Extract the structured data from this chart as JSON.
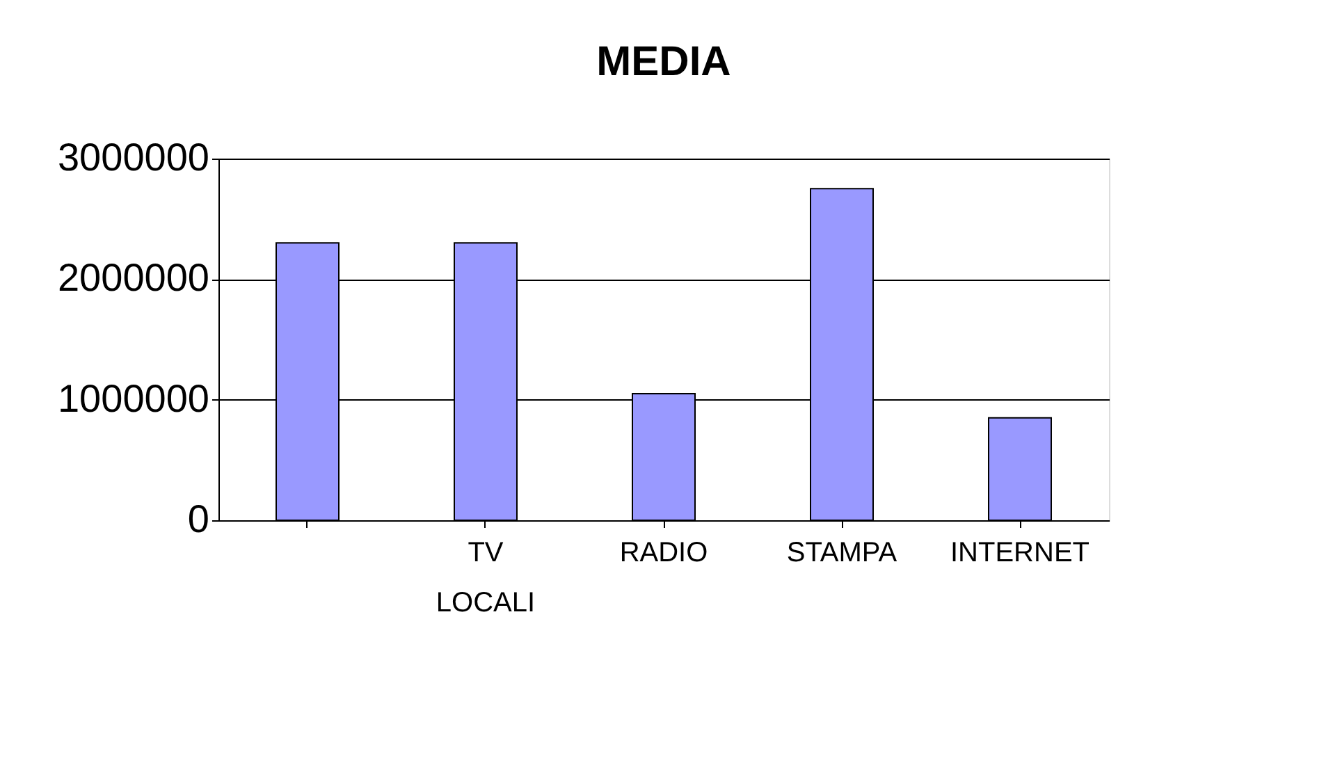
{
  "chart_data": {
    "type": "bar",
    "title": "MEDIA",
    "categories": [
      null,
      "TV LOCALI",
      "RADIO",
      "STAMPA",
      "INTERNET"
    ],
    "values": [
      2300000,
      2300000,
      1050000,
      2750000,
      850000
    ],
    "color": "#9999ff",
    "ylim": [
      0,
      3000000
    ],
    "yticks": [
      0,
      1000000,
      2000000,
      3000000
    ],
    "grid": "y"
  }
}
